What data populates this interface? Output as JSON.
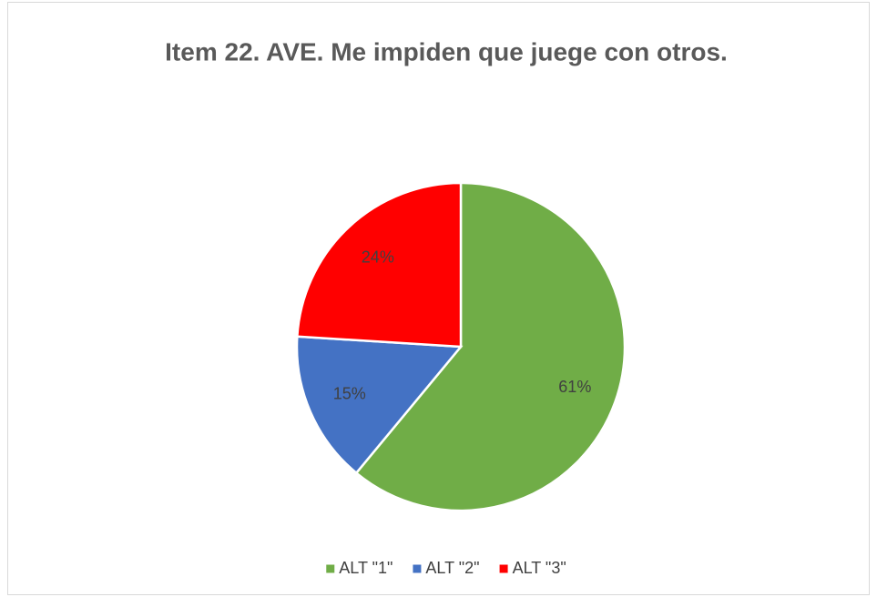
{
  "chart_data": {
    "type": "pie",
    "title": "Item 22. AVE. Me impiden que juege con otros.",
    "categories": [
      "ALT \"1\"",
      "ALT \"2\"",
      "ALT \"3\""
    ],
    "values": [
      61,
      15,
      24
    ],
    "value_labels": [
      "61%",
      "15%",
      "24%"
    ],
    "colors": [
      "#70ad47",
      "#4472c4",
      "#ff0000"
    ],
    "legend": "bottom"
  }
}
